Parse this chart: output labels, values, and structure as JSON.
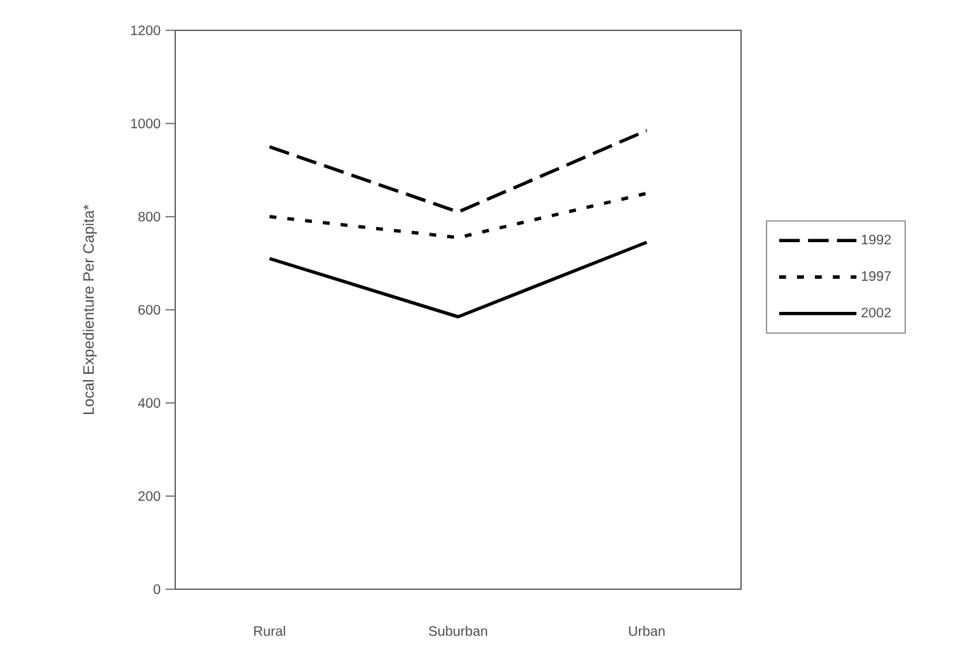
{
  "chart_data": {
    "type": "line",
    "ylabel": "Local Expedienture Per Capita*",
    "categories": [
      "Rural",
      "Suburban",
      "Urban"
    ],
    "series": [
      {
        "name": "1992",
        "color": "#000000",
        "line_style": "dashed",
        "values": [
          950,
          810,
          985
        ]
      },
      {
        "name": "1997",
        "color": "#000000",
        "line_style": "dotted",
        "values": [
          800,
          755,
          850
        ]
      },
      {
        "name": "2002",
        "color": "#000000",
        "line_style": "solid",
        "values": [
          710,
          585,
          745
        ]
      }
    ],
    "ylim": [
      0,
      1200
    ],
    "yticks": [
      0,
      200,
      400,
      600,
      800,
      1000,
      1200
    ],
    "grid": false,
    "legend": "right",
    "marker": "none"
  }
}
